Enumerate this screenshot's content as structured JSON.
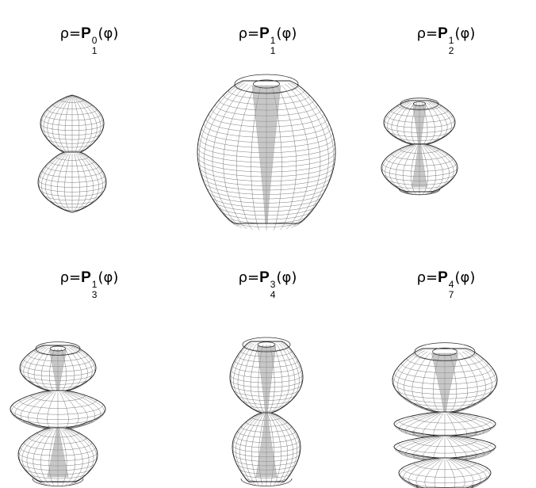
{
  "panels": [
    {
      "base": "P",
      "upper": "0",
      "lower": "1",
      "arg": "(φ)",
      "prefix": "ρ=",
      "icon": "legendre-surface-l1-m0-icon",
      "m": 0,
      "l": 1
    },
    {
      "base": "P",
      "upper": "1",
      "lower": "1",
      "arg": "(φ)",
      "prefix": "ρ=",
      "icon": "legendre-surface-l1-m1-icon",
      "m": 1,
      "l": 1
    },
    {
      "base": "P",
      "upper": "1",
      "lower": "2",
      "arg": "(φ)",
      "prefix": "ρ=",
      "icon": "legendre-surface-l2-m1-icon",
      "m": 1,
      "l": 2
    },
    {
      "base": "P",
      "upper": "1",
      "lower": "3",
      "arg": "(φ)",
      "prefix": "ρ=",
      "icon": "legendre-surface-l3-m1-icon",
      "m": 1,
      "l": 3
    },
    {
      "base": "P",
      "upper": "3",
      "lower": "4",
      "arg": "(φ)",
      "prefix": "ρ=",
      "icon": "legendre-surface-l4-m3-icon",
      "m": 3,
      "l": 4
    },
    {
      "base": "P",
      "upper": "4",
      "lower": "7",
      "arg": "(φ)",
      "prefix": "ρ=",
      "icon": "legendre-surface-l7-m4-icon",
      "m": 4,
      "l": 7
    }
  ],
  "colors": {
    "outline": "#222222",
    "grid": "#6b6b6b",
    "background": "#ffffff"
  }
}
